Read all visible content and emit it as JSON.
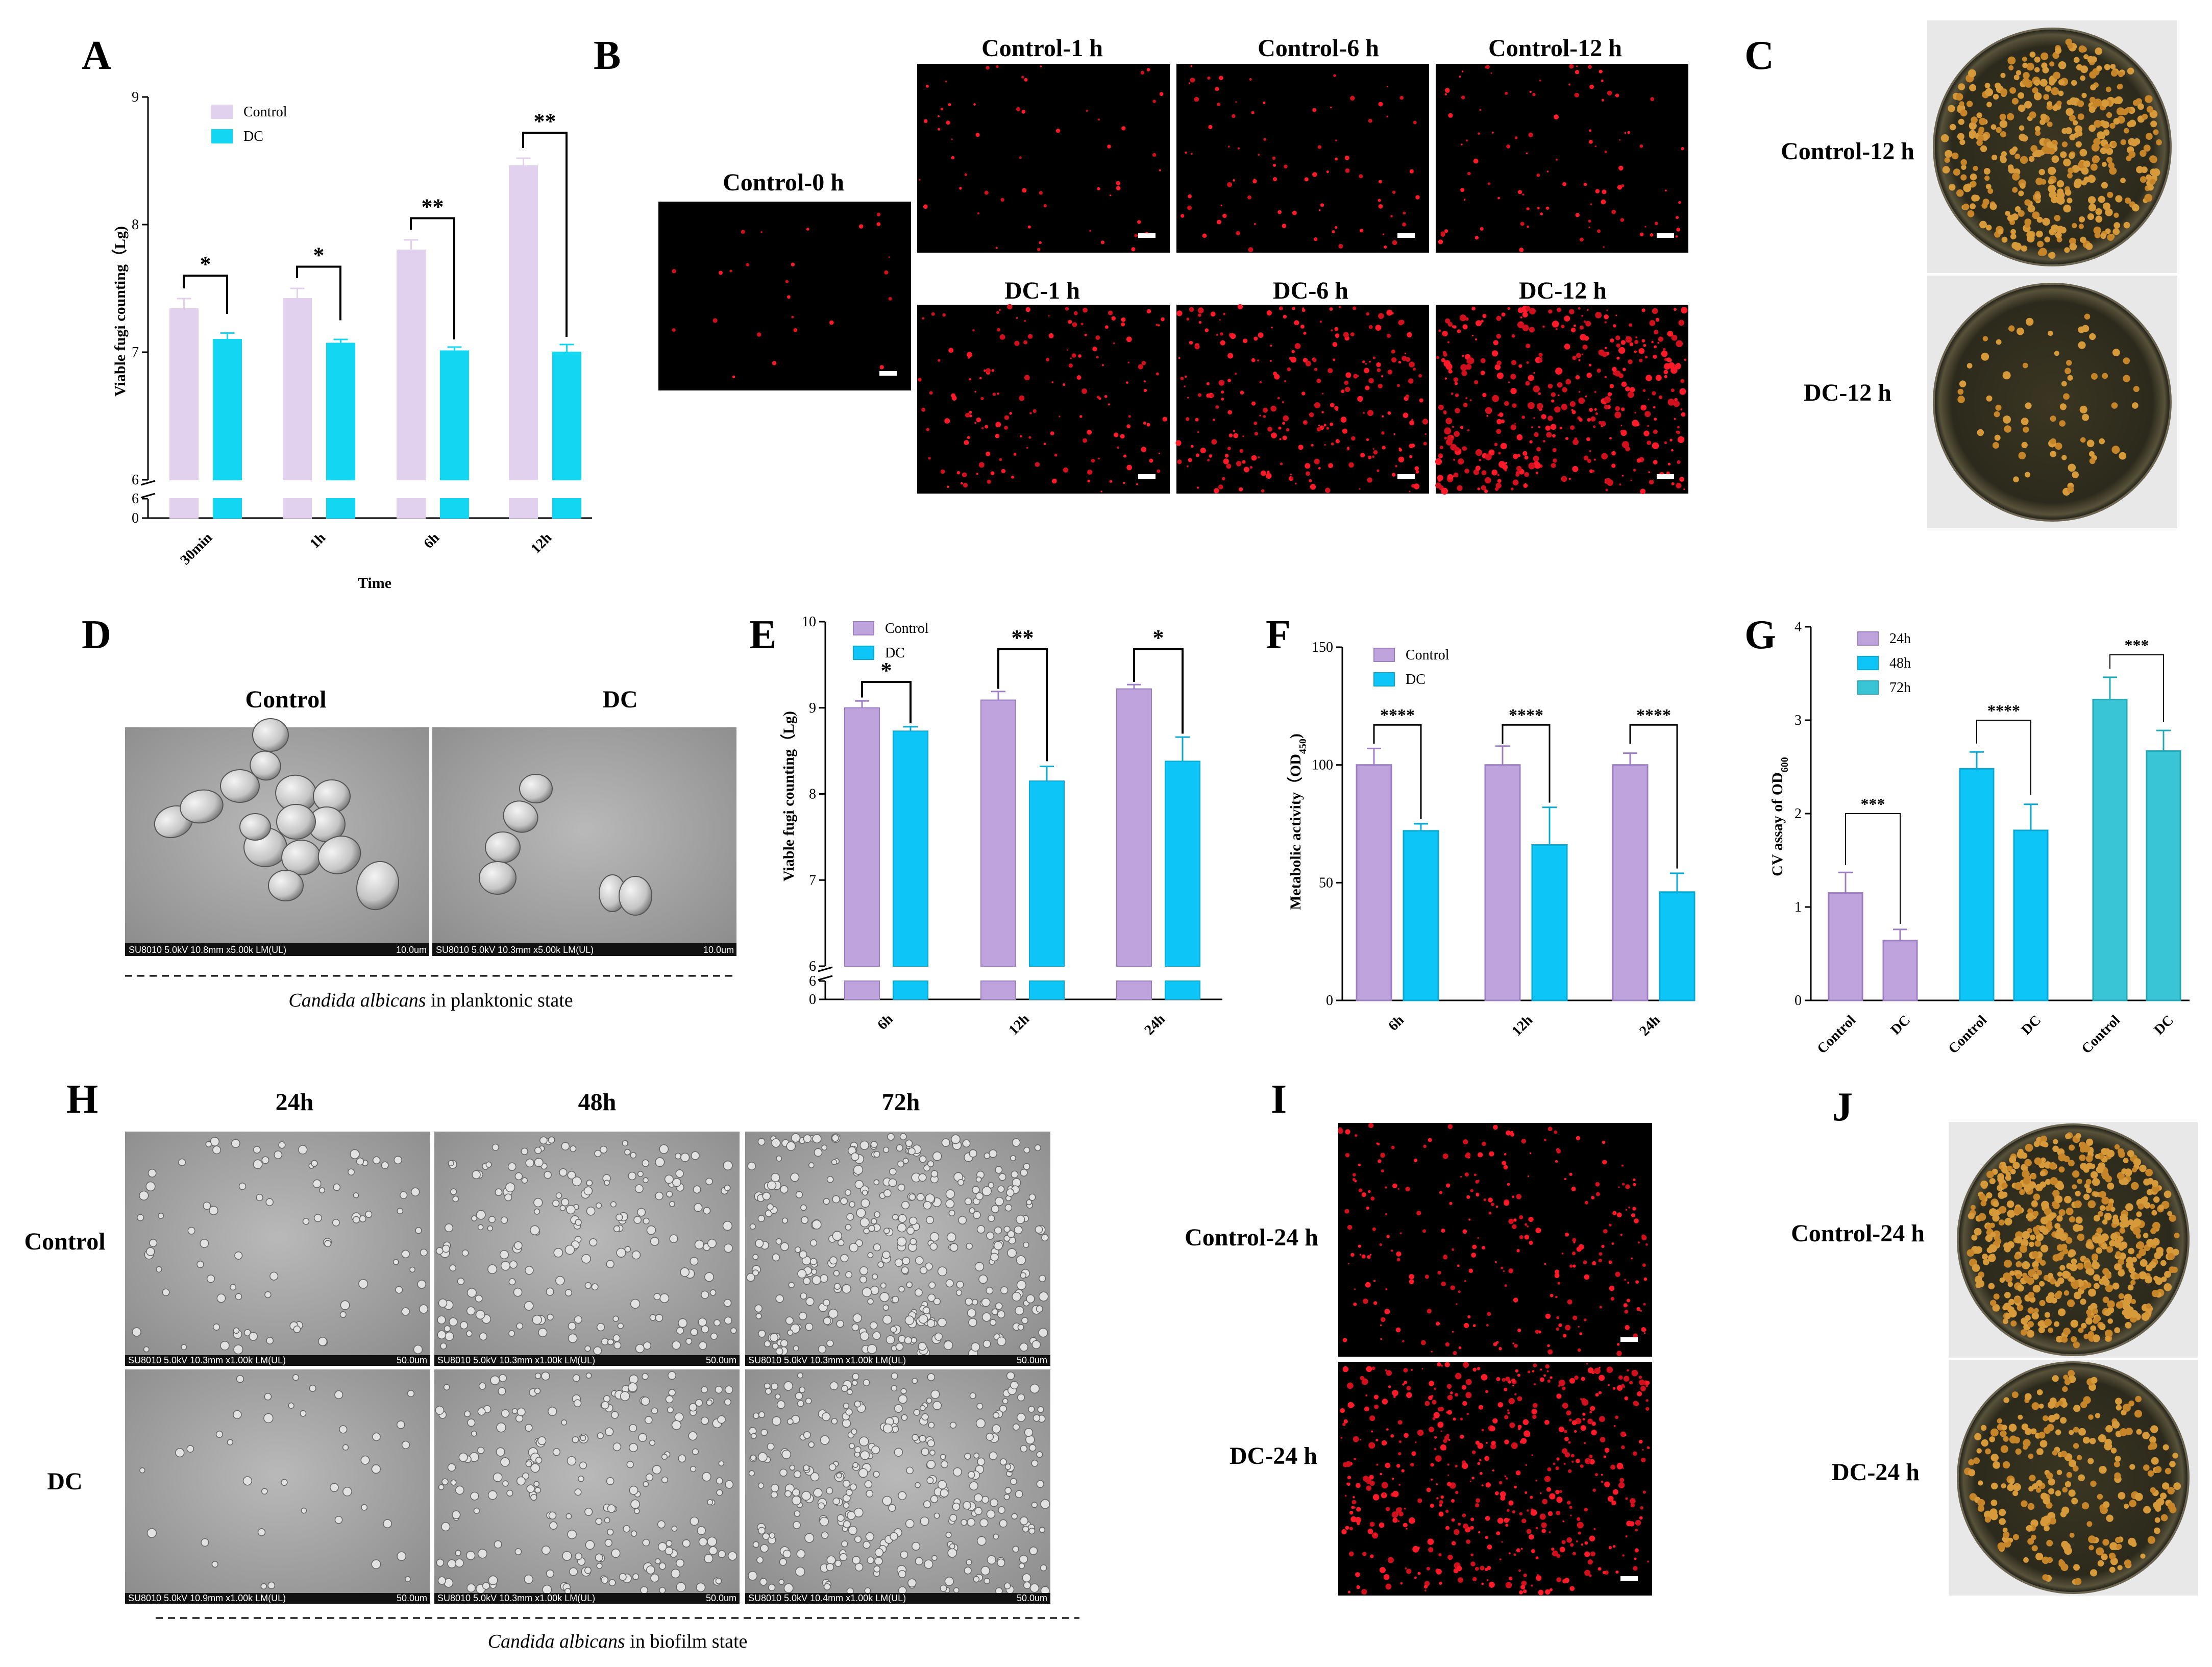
{
  "colors": {
    "purple": "#bfa3dd",
    "lightpurple": "#e1d1ee",
    "cyan": "#13d6f2",
    "blue": "#0ec5f7",
    "teal": "#3ac5d6"
  },
  "panelA": {
    "letter": "A",
    "chart_data": {
      "type": "bar",
      "categories": [
        "30min",
        "1h",
        "6h",
        "12h"
      ],
      "series": [
        {
          "name": "Control",
          "values": [
            7.34,
            7.42,
            7.8,
            8.46
          ],
          "errors": [
            0.08,
            0.08,
            0.08,
            0.06
          ]
        },
        {
          "name": "DC",
          "values": [
            7.1,
            7.07,
            7.01,
            7.0
          ],
          "errors": [
            0.05,
            0.03,
            0.03,
            0.06
          ]
        }
      ],
      "sig": [
        "*",
        "*",
        "**",
        "**"
      ],
      "xlabel": "Time",
      "ylabel": "Viable fugi counting（Lg)",
      "upper_ticks": [
        "6",
        "7",
        "8",
        "9"
      ],
      "lower_ticks": [
        "0",
        "6"
      ],
      "ylim": [
        6,
        9
      ],
      "axis_break": true,
      "legend": "top-left"
    }
  },
  "panelB": {
    "letter": "B",
    "labels": [
      "Control-0 h",
      "Control-1 h",
      "Control-6 h",
      "Control-12 h",
      "DC-1 h",
      "DC-6 h",
      "DC-12 h"
    ]
  },
  "panelC": {
    "letter": "C",
    "labels": [
      "Control-12 h",
      "DC-12 h"
    ]
  },
  "panelD": {
    "letter": "D",
    "labels": [
      "Control",
      "DC"
    ],
    "sem_captions": [
      "SU8010 5.0kV 10.8mm x5.00k LM(UL)",
      "10.0um",
      "SU8010 5.0kV 10.3mm x5.00k LM(UL)",
      "10.0um"
    ],
    "caption_italic": "Candida albicans",
    "caption_rest": " in planktonic state"
  },
  "panelE": {
    "letter": "E",
    "chart_data": {
      "type": "bar",
      "categories": [
        "6h",
        "12h",
        "24h"
      ],
      "series": [
        {
          "name": "Control",
          "values": [
            9.0,
            9.09,
            9.22
          ],
          "errors": [
            0.08,
            0.1,
            0.05
          ]
        },
        {
          "name": "DC",
          "values": [
            8.73,
            8.15,
            8.38
          ],
          "errors": [
            0.05,
            0.17,
            0.28
          ]
        }
      ],
      "sig": [
        "*",
        "**",
        "*"
      ],
      "ylabel": "Viable fugi counting（Lg)",
      "upper_ticks": [
        "6",
        "7",
        "8",
        "9",
        "10"
      ],
      "lower_ticks": [
        "0",
        "6"
      ],
      "ylim": [
        6,
        10
      ],
      "axis_break": true,
      "legend": "top-left"
    }
  },
  "panelF": {
    "letter": "F",
    "chart_data": {
      "type": "bar",
      "categories": [
        "6h",
        "12h",
        "24h"
      ],
      "series": [
        {
          "name": "Control",
          "values": [
            100,
            100,
            100
          ],
          "errors": [
            7,
            8,
            5
          ]
        },
        {
          "name": "DC",
          "values": [
            72,
            66,
            46
          ],
          "errors": [
            3,
            16,
            8
          ]
        }
      ],
      "sig": [
        "****",
        "****",
        "****"
      ],
      "ylabel": "Metabolic activity（OD",
      "ylabel_sub": "450",
      "ylabel_end": ")",
      "ticks": [
        "0",
        "50",
        "100",
        "150"
      ],
      "ylim": [
        0,
        150
      ],
      "legend": "top-left"
    }
  },
  "panelG": {
    "letter": "G",
    "chart_data": {
      "type": "bar",
      "groups": [
        "24h",
        "48h",
        "72h"
      ],
      "categories": [
        "Control",
        "DC",
        "Control",
        "DC",
        "Control",
        "DC"
      ],
      "values": [
        1.15,
        0.64,
        2.48,
        1.82,
        3.22,
        2.67
      ],
      "errors": [
        0.22,
        0.12,
        0.18,
        0.28,
        0.24,
        0.22
      ],
      "sig": [
        "***",
        "****",
        "***"
      ],
      "ylabel": "CV assay of OD",
      "ylabel_sub": "600",
      "ticks": [
        "0",
        "1",
        "2",
        "3",
        "4"
      ],
      "ylim": [
        0,
        4
      ],
      "legend": "top-left"
    }
  },
  "panelH": {
    "letter": "H",
    "cols": [
      "24h",
      "48h",
      "72h"
    ],
    "rows": [
      "Control",
      "DC"
    ],
    "sem_captions": [
      "SU8010 5.0kV 10.3mm x1.00k LM(UL)",
      "SU8010 5.0kV 10.3mm x1.00k LM(UL)",
      "SU8010 5.0kV 10.3mm x1.00k LM(UL)",
      "SU8010 5.0kV 10.9mm x1.00k LM(UL)",
      "SU8010 5.0kV 10.3mm x1.00k LM(UL)",
      "SU8010 5.0kV 10.4mm x1.00k LM(UL)"
    ],
    "scale": "50.0um",
    "caption_italic": "Candida albicans",
    "caption_rest": " in biofilm state"
  },
  "panelI": {
    "letter": "I",
    "labels": [
      "Control-24 h",
      "DC-24 h"
    ]
  },
  "panelJ": {
    "letter": "J",
    "labels": [
      "Control-24 h",
      "DC-24 h"
    ]
  }
}
